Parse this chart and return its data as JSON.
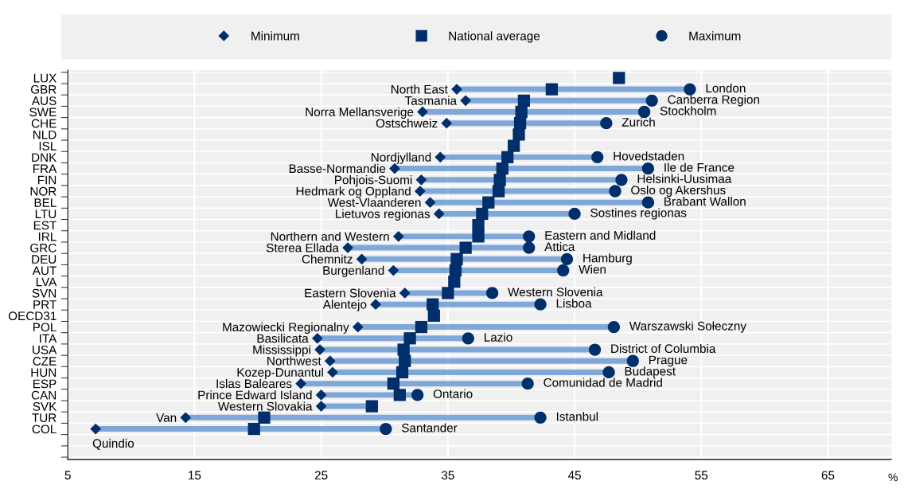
{
  "chart_data": {
    "type": "scatter",
    "orientation": "horizontal",
    "xlabel": "%",
    "categories": [
      "LUX",
      "GBR",
      "AUS",
      "SWE",
      "CHE",
      "NLD",
      "ISL",
      "DNK",
      "FRA",
      "FIN",
      "NOR",
      "BEL",
      "LTU",
      "EST",
      "IRL",
      "GRC",
      "DEU",
      "AUT",
      "LVA",
      "SVN",
      "PRT",
      "OECD31",
      "POL",
      "ITA",
      "USA",
      "CZE",
      "HUN",
      "ESP",
      "CAN",
      "SVK",
      "TUR",
      "COL"
    ],
    "xlim": [
      5,
      70
    ],
    "xticks": [
      5,
      15,
      25,
      35,
      45,
      55,
      65
    ],
    "grid": true,
    "legend": "top",
    "series": [
      {
        "name": "Minimum",
        "marker": "diamond",
        "color": "#002f6c",
        "values": [
          null,
          35.7,
          36.4,
          33.0,
          34.9,
          null,
          null,
          34.4,
          30.8,
          32.9,
          32.8,
          33.6,
          34.3,
          null,
          31.1,
          27.1,
          28.2,
          30.7,
          null,
          31.6,
          29.3,
          null,
          27.9,
          24.7,
          24.9,
          25.7,
          25.9,
          23.4,
          25.0,
          25.0,
          14.3,
          7.2
        ]
      },
      {
        "name": "National average",
        "marker": "square",
        "color": "#002f6c",
        "values": [
          48.5,
          43.2,
          41.0,
          40.8,
          40.7,
          40.6,
          40.2,
          39.7,
          39.3,
          39.1,
          39.0,
          38.2,
          37.7,
          37.4,
          37.4,
          36.4,
          35.7,
          35.6,
          35.5,
          35.0,
          33.8,
          33.9,
          32.9,
          32.0,
          31.5,
          31.6,
          31.4,
          30.7,
          31.2,
          29.0,
          20.5,
          19.7
        ]
      },
      {
        "name": "Maximum",
        "marker": "circle",
        "color": "#002f6c",
        "values": [
          null,
          54.1,
          51.1,
          50.5,
          47.5,
          null,
          null,
          46.8,
          50.8,
          48.7,
          48.2,
          50.8,
          45.0,
          null,
          41.4,
          41.4,
          44.4,
          44.1,
          null,
          38.5,
          42.3,
          null,
          48.1,
          36.6,
          46.6,
          49.6,
          47.7,
          41.3,
          32.6,
          null,
          42.3,
          30.1
        ]
      }
    ],
    "annotations": [
      {
        "text": "North East",
        "x": 35.7,
        "y": "GBR"
      },
      {
        "text": "London",
        "x": 54.1,
        "y": "GBR"
      },
      {
        "text": "Tasmania",
        "x": 36.4,
        "y": "AUS"
      },
      {
        "text": "Canberra Region",
        "x": 51.1,
        "y": "AUS"
      },
      {
        "text": "Norra Mellansverige",
        "x": 33.0,
        "y": "SWE"
      },
      {
        "text": "Stockholm",
        "x": 50.5,
        "y": "SWE"
      },
      {
        "text": "Ostschweiz",
        "x": 34.9,
        "y": "CHE"
      },
      {
        "text": "Zurich",
        "x": 47.5,
        "y": "CHE"
      },
      {
        "text": "Nordjylland",
        "x": 34.4,
        "y": "DNK"
      },
      {
        "text": "Hovedstaden",
        "x": 46.8,
        "y": "DNK"
      },
      {
        "text": "Basse-Normandie",
        "x": 30.8,
        "y": "FRA"
      },
      {
        "text": "Ile de France",
        "x": 50.8,
        "y": "FRA"
      },
      {
        "text": "Pohjois-Suomi",
        "x": 32.9,
        "y": "FIN"
      },
      {
        "text": "Helsinki-Uusimaa",
        "x": 48.7,
        "y": "FIN"
      },
      {
        "text": "Hedmark og Oppland",
        "x": 32.8,
        "y": "NOR"
      },
      {
        "text": "Oslo og Akershus",
        "x": 48.2,
        "y": "NOR"
      },
      {
        "text": "West-Vlaanderen",
        "x": 33.6,
        "y": "BEL"
      },
      {
        "text": "Brabant Wallon",
        "x": 50.8,
        "y": "BEL"
      },
      {
        "text": "Lietuvos regionas",
        "x": 34.3,
        "y": "LTU"
      },
      {
        "text": "Sostines regionas",
        "x": 45.0,
        "y": "LTU"
      },
      {
        "text": "Northern and Western",
        "x": 31.1,
        "y": "IRL"
      },
      {
        "text": "Eastern and Midland",
        "x": 41.4,
        "y": "IRL"
      },
      {
        "text": "Sterea Ellada",
        "x": 27.1,
        "y": "GRC"
      },
      {
        "text": "Attica",
        "x": 41.4,
        "y": "GRC"
      },
      {
        "text": "Chemnitz",
        "x": 28.2,
        "y": "DEU"
      },
      {
        "text": "Hamburg",
        "x": 44.4,
        "y": "DEU"
      },
      {
        "text": "Burgenland",
        "x": 30.7,
        "y": "AUT"
      },
      {
        "text": "Wien",
        "x": 44.1,
        "y": "AUT"
      },
      {
        "text": "Eastern Slovenia",
        "x": 31.6,
        "y": "SVN"
      },
      {
        "text": "Western Slovenia",
        "x": 38.5,
        "y": "SVN"
      },
      {
        "text": "Alentejo",
        "x": 29.3,
        "y": "PRT"
      },
      {
        "text": "Lisboa",
        "x": 42.3,
        "y": "PRT"
      },
      {
        "text": "Mazowiecki Regionalny",
        "x": 27.9,
        "y": "POL"
      },
      {
        "text": "Warszawski Sołeczny",
        "x": 48.1,
        "y": "POL"
      },
      {
        "text": "Basilicata",
        "x": 24.7,
        "y": "ITA"
      },
      {
        "text": "Lazio",
        "x": 36.6,
        "y": "ITA"
      },
      {
        "text": "Mississippi",
        "x": 24.9,
        "y": "USA"
      },
      {
        "text": "District of Columbia",
        "x": 46.6,
        "y": "USA"
      },
      {
        "text": "Northwest",
        "x": 25.7,
        "y": "CZE"
      },
      {
        "text": "Prague",
        "x": 49.6,
        "y": "CZE"
      },
      {
        "text": "Kozep-Dunantul",
        "x": 25.9,
        "y": "HUN"
      },
      {
        "text": "Budapest",
        "x": 47.7,
        "y": "HUN"
      },
      {
        "text": "Islas Baleares",
        "x": 23.4,
        "y": "ESP"
      },
      {
        "text": "Comunidad de Madrid",
        "x": 41.3,
        "y": "ESP"
      },
      {
        "text": "Prince Edward Island",
        "x": 25.0,
        "y": "CAN"
      },
      {
        "text": "Ontario",
        "x": 32.6,
        "y": "CAN"
      },
      {
        "text": "Western Slovakia",
        "x": 25.0,
        "y": "SVK"
      },
      {
        "text": "Van",
        "x": 14.3,
        "y": "TUR"
      },
      {
        "text": "Istanbul",
        "x": 42.3,
        "y": "TUR"
      },
      {
        "text": "Quindio",
        "x": 7.2,
        "y": "COL"
      },
      {
        "text": "Santander",
        "x": 30.1,
        "y": "COL"
      }
    ]
  }
}
